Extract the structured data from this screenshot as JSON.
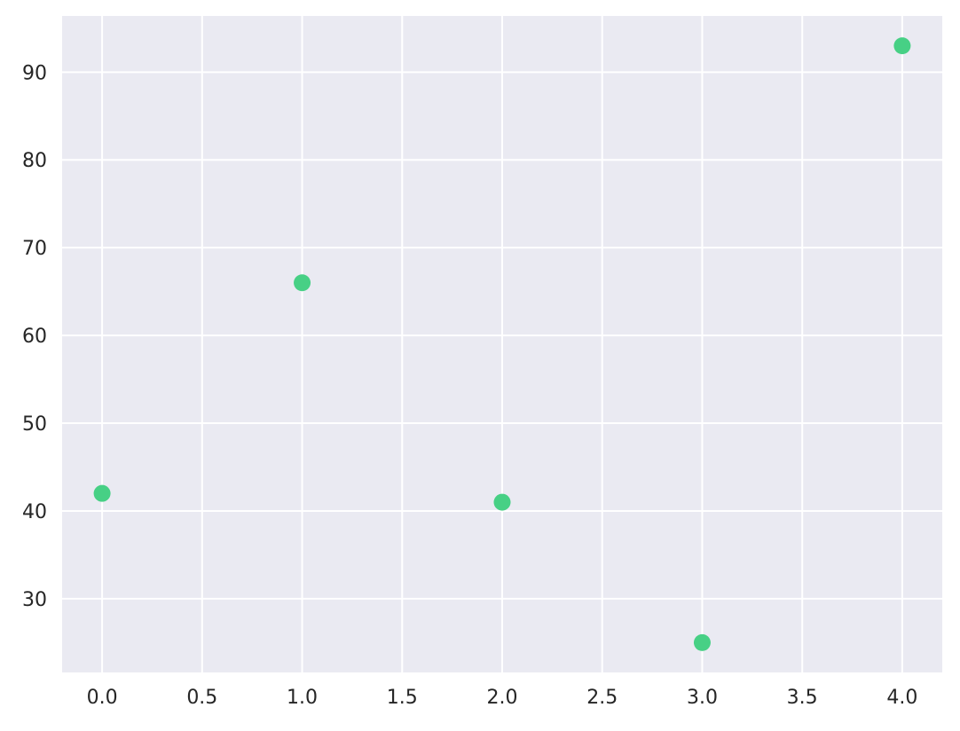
{
  "chart_data": {
    "type": "scatter",
    "title": "",
    "xlabel": "",
    "ylabel": "",
    "x": [
      0,
      1,
      2,
      3,
      4
    ],
    "y": [
      42,
      66,
      41,
      25,
      93
    ],
    "xlim": [
      -0.2,
      4.2
    ],
    "ylim": [
      21.6,
      96.4
    ],
    "x_ticks": [
      0,
      0.5,
      1,
      1.5,
      2,
      2.5,
      3,
      3.5,
      4
    ],
    "x_tick_labels": [
      "0.0",
      "0.5",
      "1.0",
      "1.5",
      "2.0",
      "2.5",
      "3.0",
      "3.5",
      "4.0"
    ],
    "y_ticks": [
      30,
      40,
      50,
      60,
      70,
      80,
      90
    ],
    "y_tick_labels": [
      "30",
      "40",
      "50",
      "60",
      "70",
      "80",
      "90"
    ],
    "grid": true,
    "colors": {
      "points": "#47d085",
      "plot_background": "#eaeaf2",
      "grid": "#ffffff",
      "text": "#262626"
    }
  }
}
